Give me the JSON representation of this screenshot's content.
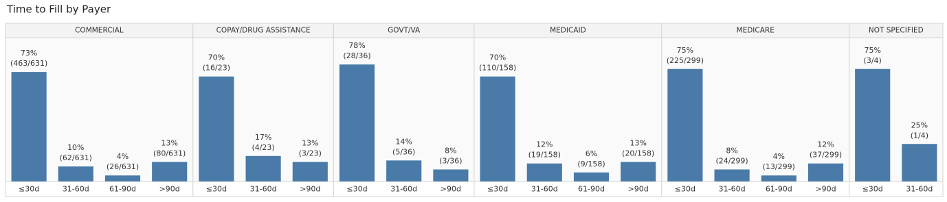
{
  "title": "Time to Fill by Payer",
  "chart_data": [
    {
      "type": "bar",
      "title": "COMMERCIAL",
      "categories": [
        "≤30d",
        "31-60d",
        "61-90d",
        ">90d"
      ],
      "values": [
        73,
        10,
        4,
        13
      ],
      "value_labels": [
        "73%",
        "10%",
        "4%",
        "13%"
      ],
      "detail_labels": [
        "(463/631)",
        "(62/631)",
        "(26/631)",
        "(80/631)"
      ],
      "color": "#4a7aa8",
      "ylim": [
        0,
        100
      ]
    },
    {
      "type": "bar",
      "title": "COPAY/DRUG ASSISTANCE",
      "categories": [
        "≤30d",
        "31-60d",
        ">90d"
      ],
      "values": [
        70,
        17,
        13
      ],
      "value_labels": [
        "70%",
        "17%",
        "13%"
      ],
      "detail_labels": [
        "(16/23)",
        "(4/23)",
        "(3/23)"
      ],
      "color": "#4a7aa8",
      "ylim": [
        0,
        100
      ]
    },
    {
      "type": "bar",
      "title": "GOVT/VA",
      "categories": [
        "≤30d",
        "31-60d",
        ">90d"
      ],
      "values": [
        78,
        14,
        8
      ],
      "value_labels": [
        "78%",
        "14%",
        "8%"
      ],
      "detail_labels": [
        "(28/36)",
        "(5/36)",
        "(3/36)"
      ],
      "color": "#4a7aa8",
      "ylim": [
        0,
        100
      ]
    },
    {
      "type": "bar",
      "title": "MEDICAID",
      "categories": [
        "≤30d",
        "31-60d",
        "61-90d",
        ">90d"
      ],
      "values": [
        70,
        12,
        6,
        13
      ],
      "value_labels": [
        "70%",
        "12%",
        "6%",
        "13%"
      ],
      "detail_labels": [
        "(110/158)",
        "(19/158)",
        "(9/158)",
        "(20/158)"
      ],
      "color": "#4a7aa8",
      "ylim": [
        0,
        100
      ]
    },
    {
      "type": "bar",
      "title": "MEDICARE",
      "categories": [
        "≤30d",
        "31-60d",
        "61-90d",
        ">90d"
      ],
      "values": [
        75,
        8,
        4,
        12
      ],
      "value_labels": [
        "75%",
        "8%",
        "4%",
        "12%"
      ],
      "detail_labels": [
        "(225/299)",
        "(24/299)",
        "(13/299)",
        "(37/299)"
      ],
      "color": "#4a7aa8",
      "ylim": [
        0,
        100
      ]
    },
    {
      "type": "bar",
      "title": "NOT SPECIFIED",
      "categories": [
        "≤30d",
        "31-60d"
      ],
      "values": [
        75,
        25
      ],
      "value_labels": [
        "75%",
        "25%"
      ],
      "detail_labels": [
        "(3/4)",
        "(1/4)"
      ],
      "color": "#4a7aa8",
      "ylim": [
        0,
        100
      ]
    }
  ]
}
